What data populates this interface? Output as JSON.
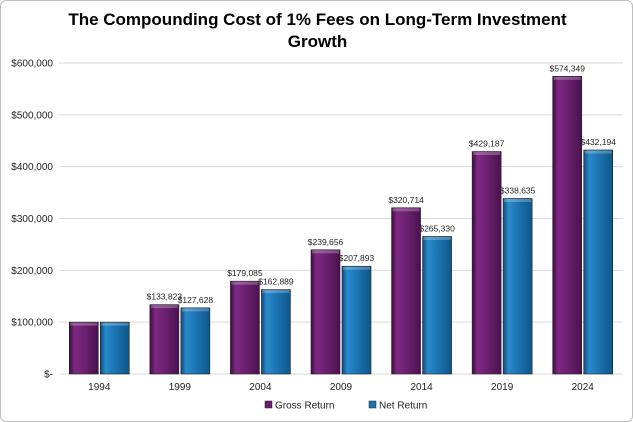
{
  "chart_data": {
    "type": "bar",
    "title": "The Compounding Cost of 1% Fees on Long-Term Investment Growth",
    "xlabel": "",
    "ylabel": "",
    "ylim": [
      0,
      600000
    ],
    "yticks": [
      0,
      100000,
      200000,
      300000,
      400000,
      500000,
      600000
    ],
    "ytick_labels": [
      "$-",
      "$100,000",
      "$200,000",
      "$300,000",
      "$400,000",
      "$500,000",
      "$600,000"
    ],
    "categories": [
      "1994",
      "1999",
      "2004",
      "2009",
      "2014",
      "2019",
      "2024"
    ],
    "series": [
      {
        "name": "Gross Return",
        "color": "#6a1f6e",
        "values": [
          100000,
          133823,
          179085,
          239656,
          320714,
          429187,
          574349
        ],
        "labels": [
          "",
          "$133,823",
          "$179,085",
          "$239,656",
          "$320,714",
          "$429,187",
          "$574,349"
        ]
      },
      {
        "name": "Net Return",
        "color": "#1a72b0",
        "values": [
          100000,
          127628,
          162889,
          207893,
          265330,
          338635,
          432194
        ],
        "labels": [
          "",
          "$127,628",
          "$162,889",
          "$207,893",
          "$265,330",
          "$338,635",
          "$432,194"
        ]
      }
    ],
    "legend_position": "bottom",
    "grid": true
  }
}
